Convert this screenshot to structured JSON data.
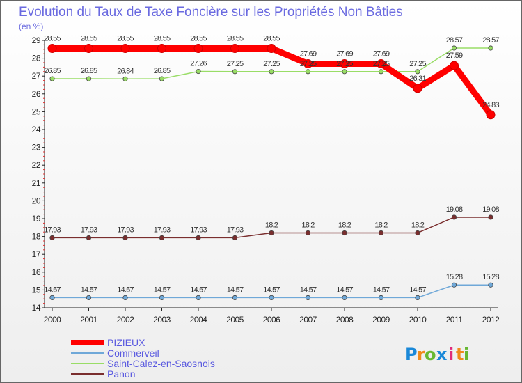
{
  "chart_data": {
    "type": "line",
    "title": "Evolution du Taux de Taxe Foncière sur les Propriétés Non Bâties",
    "subtitle": "(en %)",
    "x": [
      "2000",
      "2001",
      "2002",
      "2003",
      "2004",
      "2005",
      "2006",
      "2007",
      "2008",
      "2009",
      "2010",
      "2011",
      "2012"
    ],
    "y_ticks": [
      14,
      15,
      16,
      17,
      18,
      19,
      20,
      21,
      22,
      23,
      24,
      25,
      26,
      27,
      28,
      29
    ],
    "ylim": [
      14,
      29
    ],
    "grid": false,
    "legend_position": "bottom-left",
    "series": [
      {
        "name": "PIZIEUX",
        "color": "#ff0000",
        "values": [
          28.55,
          28.55,
          28.55,
          28.55,
          28.55,
          28.55,
          28.55,
          27.69,
          27.69,
          27.69,
          26.31,
          27.59,
          24.83
        ],
        "labels": [
          "28.55",
          "28.55",
          "28.55",
          "28.55",
          "28.55",
          "28.55",
          "28.55",
          "27.69",
          "27.69",
          "27.69",
          "26.31",
          "27.59",
          "24.83"
        ]
      },
      {
        "name": "Commerveil",
        "color": "#6fa8d8",
        "values": [
          14.57,
          14.57,
          14.57,
          14.57,
          14.57,
          14.57,
          14.57,
          14.57,
          14.57,
          14.57,
          14.57,
          15.28,
          15.28
        ],
        "labels": [
          "14.57",
          "14.57",
          "14.57",
          "14.57",
          "14.57",
          "14.57",
          "14.57",
          "14.57",
          "14.57",
          "14.57",
          "14.57",
          "15.28",
          "15.28"
        ]
      },
      {
        "name": "Saint-Calez-en-Saosnois",
        "color": "#99dd66",
        "values": [
          26.85,
          26.85,
          26.84,
          26.85,
          27.26,
          27.25,
          27.25,
          27.25,
          27.25,
          27.25,
          27.25,
          28.57,
          28.57
        ],
        "labels": [
          "26.85",
          "26.85",
          "26.84",
          "26.85",
          "27.26",
          "27.25",
          "27.25",
          "27.25",
          "27.25",
          "27.25",
          "27.25",
          "28.57",
          "28.57"
        ]
      },
      {
        "name": "Panon",
        "color": "#7a2e2e",
        "values": [
          17.93,
          17.93,
          17.93,
          17.93,
          17.93,
          17.93,
          18.2,
          18.2,
          18.2,
          18.2,
          18.2,
          19.08,
          19.08
        ],
        "labels": [
          "17.93",
          "17.93",
          "17.93",
          "17.93",
          "17.93",
          "17.93",
          "18.2",
          "18.2",
          "18.2",
          "18.2",
          "18.2",
          "19.08",
          "19.08"
        ]
      }
    ]
  },
  "logo": {
    "letters": [
      "P",
      "r",
      "o",
      "x",
      "i",
      "t",
      "i"
    ],
    "colors": [
      "#1a88d8",
      "#f08a1a",
      "#66b832",
      "#1a88d8",
      "#e02a7a",
      "#f08a1a",
      "#66b832"
    ]
  }
}
